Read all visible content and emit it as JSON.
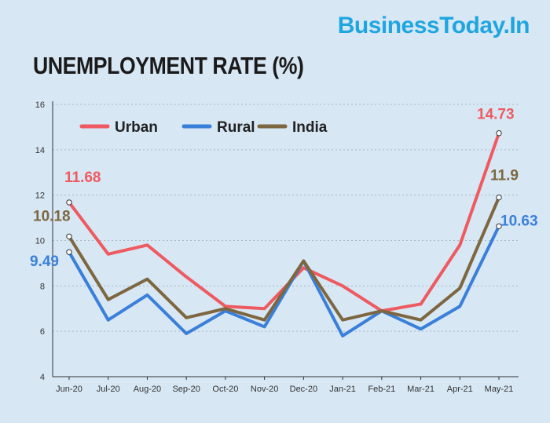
{
  "header": {
    "brand": "BusinessToday.In",
    "title": "UNEMPLOYMENT RATE (%)"
  },
  "colors": {
    "background": "#d7e7f4",
    "brand": "#1fa6e0",
    "urban": "#ee5a60",
    "rural": "#3a7fd9",
    "india": "#7d6740"
  },
  "chart_data": {
    "type": "line",
    "title": "UNEMPLOYMENT RATE (%)",
    "categories": [
      "Jun-20",
      "Jul-20",
      "Aug-20",
      "Sep-20",
      "Oct-20",
      "Nov-20",
      "Dec-20",
      "Jan-21",
      "Feb-21",
      "Mar-21",
      "Apr-21",
      "May-21"
    ],
    "ylim": [
      4,
      16
    ],
    "yticks": [
      "4",
      "6",
      "8",
      "10",
      "12",
      "14",
      "16"
    ],
    "grid": "horizontal dashed",
    "legend": "top-left",
    "series": [
      {
        "name": "Urban",
        "color": "#ee5a60",
        "values": [
          11.68,
          9.4,
          9.8,
          8.4,
          7.1,
          7.0,
          8.8,
          8.0,
          6.9,
          7.2,
          9.8,
          14.73
        ]
      },
      {
        "name": "Rural",
        "color": "#3a7fd9",
        "values": [
          9.49,
          6.5,
          7.6,
          5.9,
          6.9,
          6.2,
          9.1,
          5.8,
          6.9,
          6.1,
          7.1,
          10.63
        ]
      },
      {
        "name": "India",
        "color": "#7d6740",
        "values": [
          10.18,
          7.4,
          8.3,
          6.6,
          7.0,
          6.5,
          9.1,
          6.5,
          6.9,
          6.5,
          7.9,
          11.9
        ]
      }
    ],
    "data_labels": [
      {
        "series": "Urban",
        "index": 0,
        "text": "11.68"
      },
      {
        "series": "India",
        "index": 0,
        "text": "10.18"
      },
      {
        "series": "Rural",
        "index": 0,
        "text": "9.49"
      },
      {
        "series": "Urban",
        "index": 11,
        "text": "14.73"
      },
      {
        "series": "India",
        "index": 11,
        "text": "11.9"
      },
      {
        "series": "Rural",
        "index": 11,
        "text": "10.63"
      }
    ]
  }
}
